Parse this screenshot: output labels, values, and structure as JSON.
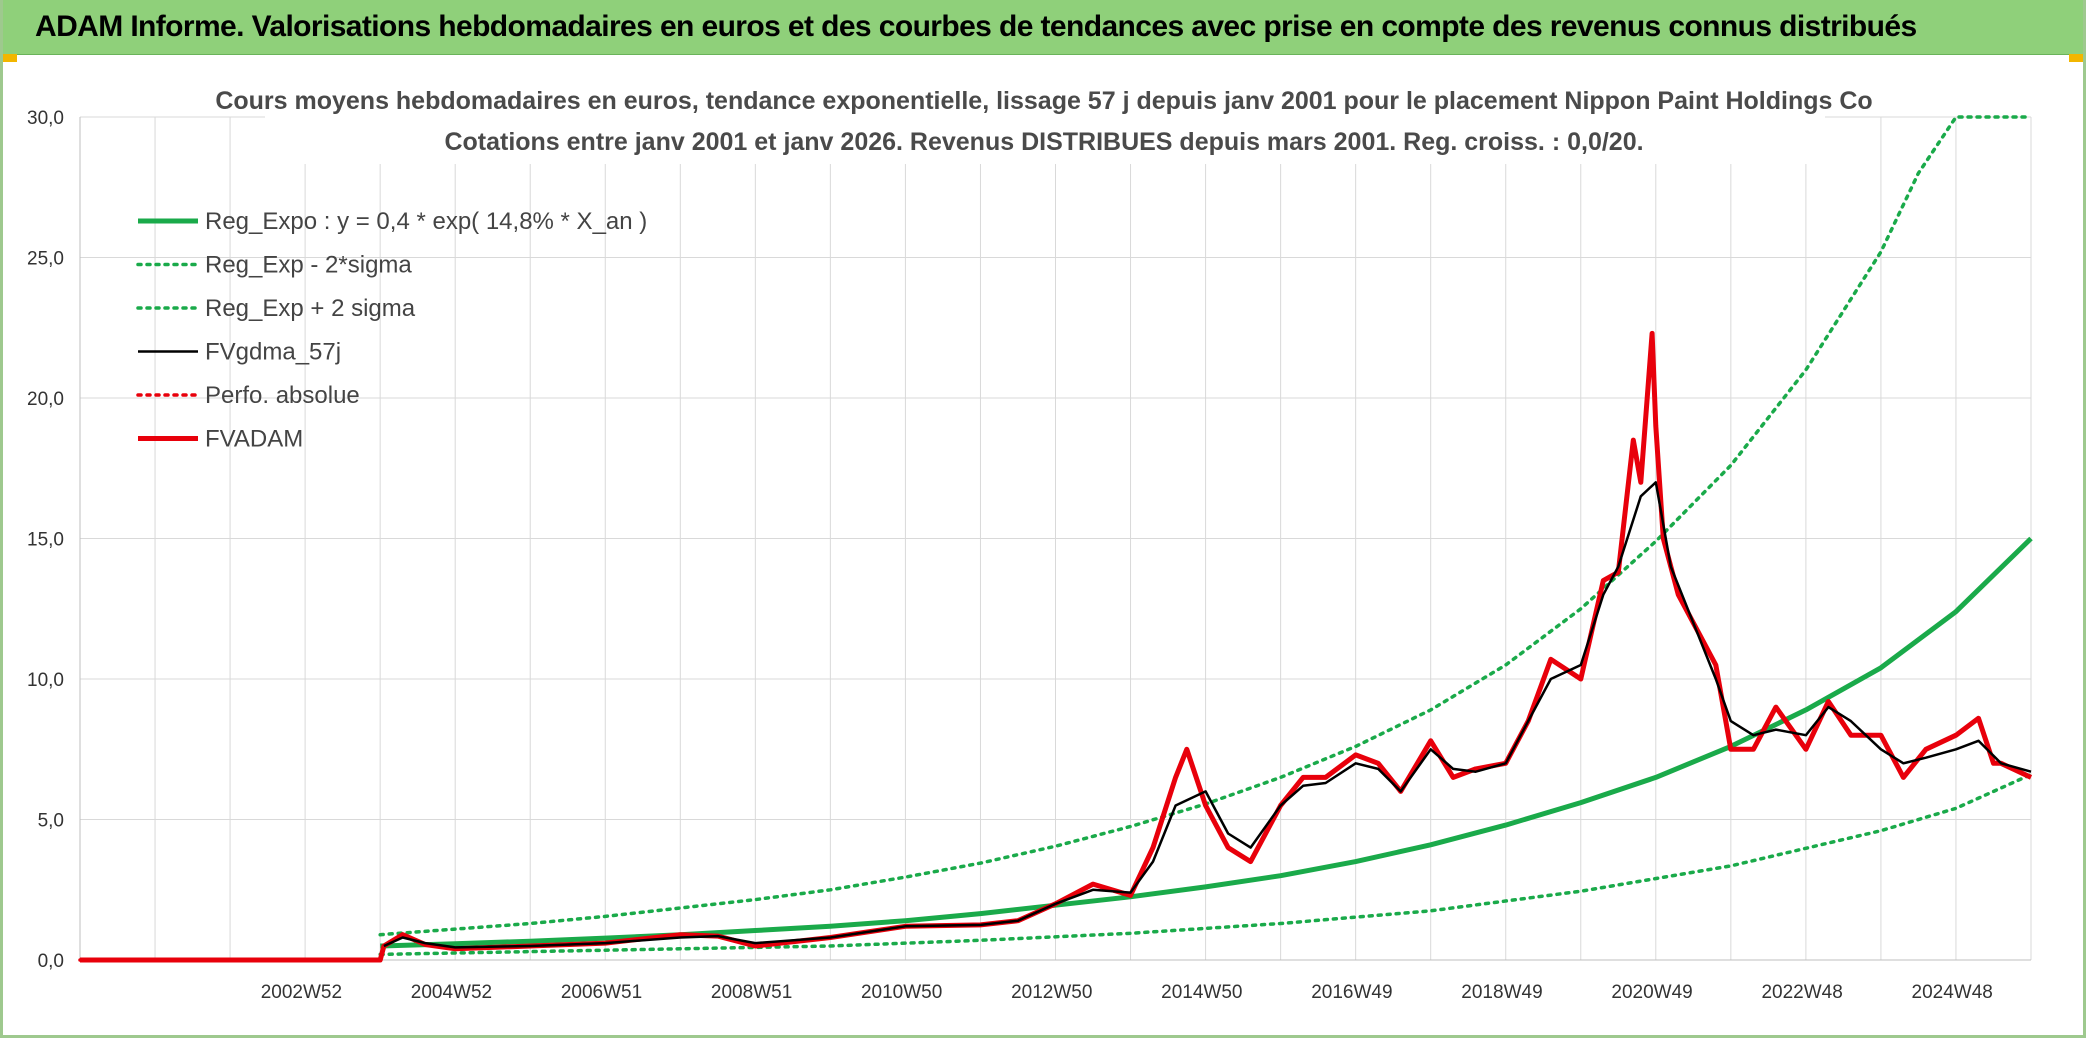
{
  "header": {
    "title": "ADAM Informe. Valorisations hebdomadaires en euros et des courbes de tendances avec prise en compte des revenus connus distribués"
  },
  "colors": {
    "header_bg": "#8fd07a",
    "green": "#1aaa4a",
    "black": "#000000",
    "red": "#e8000b",
    "grid": "#d9d9d9"
  },
  "chart_data": {
    "type": "line",
    "title": "Cours moyens hebdomadaires en euros, tendance exponentielle, lissage 57 j depuis janv 2001 pour le placement Nippon Paint Holdings Co",
    "subtitle": "Cotations entre janv 2001 et janv 2026. Revenus DISTRIBUES depuis mars 2001. Reg. croiss. : 0,0/20.",
    "xlabel": "",
    "ylabel": "",
    "xlim": [
      2000.0,
      2026.0
    ],
    "ylim": [
      0,
      30
    ],
    "yticks": [
      0,
      5,
      10,
      15,
      20,
      25,
      30
    ],
    "ytick_labels": [
      "0,0",
      "5,0",
      "10,0",
      "15,0",
      "20,0",
      "25,0",
      "30,0"
    ],
    "xticks": [
      2002.95,
      2004.95,
      2006.95,
      2008.95,
      2010.95,
      2012.95,
      2014.95,
      2016.95,
      2018.95,
      2020.95,
      2022.95,
      2024.95
    ],
    "xtick_labels": [
      "2002W52",
      "2004W52",
      "2006W51",
      "2008W51",
      "2010W50",
      "2012W50",
      "2014W50",
      "2016W49",
      "2018W49",
      "2020W49",
      "2022W48",
      "2024W48"
    ],
    "grid": true,
    "legend_position": "top-left",
    "legend": [
      "Reg_Expo : y = 0,4 * exp( 14,8% *  X_an )",
      "Reg_Exp - 2*sigma",
      "Reg_Exp + 2 sigma",
      "FVgdma_57j",
      "Perfo. absolue",
      "FVADAM"
    ],
    "series": [
      {
        "name": "Reg_Expo : y = 0,4 * exp( 14,8% *  X_an )",
        "style": "solid-thick",
        "color": "#1aaa4a",
        "x": [
          2004.0,
          2005.0,
          2006.0,
          2007.0,
          2008.0,
          2009.0,
          2010.0,
          2011.0,
          2012.0,
          2013.0,
          2014.0,
          2015.0,
          2016.0,
          2017.0,
          2018.0,
          2019.0,
          2020.0,
          2021.0,
          2022.0,
          2023.0,
          2024.0,
          2025.0,
          2026.0
        ],
        "y": [
          0.5,
          0.58,
          0.67,
          0.78,
          0.9,
          1.05,
          1.2,
          1.4,
          1.65,
          1.95,
          2.25,
          2.6,
          3.0,
          3.5,
          4.1,
          4.8,
          5.6,
          6.5,
          7.6,
          8.9,
          10.4,
          12.4,
          15.0
        ]
      },
      {
        "name": "Reg_Exp - 2*sigma",
        "style": "dotted",
        "color": "#1aaa4a",
        "x": [
          2004.0,
          2006.0,
          2008.0,
          2010.0,
          2012.0,
          2014.0,
          2016.0,
          2018.0,
          2020.0,
          2022.0,
          2024.0,
          2025.0,
          2026.0
        ],
        "y": [
          0.2,
          0.3,
          0.4,
          0.5,
          0.7,
          0.95,
          1.3,
          1.75,
          2.45,
          3.35,
          4.6,
          5.4,
          6.6
        ]
      },
      {
        "name": "Reg_Exp + 2 sigma",
        "style": "dotted",
        "color": "#1aaa4a",
        "x": [
          2004.0,
          2005.0,
          2006.0,
          2007.0,
          2008.0,
          2009.0,
          2010.0,
          2011.0,
          2012.0,
          2013.0,
          2014.0,
          2015.0,
          2016.0,
          2017.0,
          2018.0,
          2019.0,
          2020.0,
          2021.0,
          2022.0,
          2023.0,
          2024.0,
          2024.5,
          2025.0,
          2026.0
        ],
        "y": [
          0.9,
          1.1,
          1.3,
          1.55,
          1.85,
          2.15,
          2.5,
          2.95,
          3.45,
          4.05,
          4.75,
          5.55,
          6.5,
          7.6,
          8.9,
          10.5,
          12.5,
          14.9,
          17.6,
          21.0,
          25.2,
          28.0,
          30.0,
          30.0
        ]
      },
      {
        "name": "FVgdma_57j",
        "style": "solid",
        "color": "#000000",
        "x": [
          2004.05,
          2004.3,
          2004.6,
          2005.0,
          2006.0,
          2007.0,
          2008.0,
          2008.5,
          2009.0,
          2010.0,
          2010.5,
          2011.0,
          2012.0,
          2012.5,
          2013.0,
          2013.5,
          2014.0,
          2014.3,
          2014.6,
          2015.0,
          2015.3,
          2015.6,
          2016.0,
          2016.3,
          2016.6,
          2017.0,
          2017.3,
          2017.6,
          2018.0,
          2018.3,
          2018.6,
          2019.0,
          2019.3,
          2019.6,
          2020.0,
          2020.3,
          2020.5,
          2020.8,
          2021.0,
          2021.2,
          2021.5,
          2021.8,
          2022.0,
          2022.3,
          2022.6,
          2023.0,
          2023.3,
          2023.6,
          2024.0,
          2024.3,
          2024.6,
          2025.0,
          2025.3,
          2025.6,
          2026.0
        ],
        "y": [
          0.5,
          0.8,
          0.6,
          0.45,
          0.5,
          0.6,
          0.8,
          0.85,
          0.6,
          0.8,
          1.0,
          1.2,
          1.25,
          1.4,
          2.0,
          2.5,
          2.4,
          3.5,
          5.5,
          6.0,
          4.5,
          4.0,
          5.5,
          6.2,
          6.3,
          7.0,
          6.8,
          6.0,
          7.5,
          6.8,
          6.7,
          7.0,
          8.5,
          10.0,
          10.5,
          13.0,
          14.0,
          16.5,
          17.0,
          14.0,
          12.0,
          10.0,
          8.5,
          8.0,
          8.2,
          8.0,
          9.0,
          8.5,
          7.5,
          7.0,
          7.2,
          7.5,
          7.8,
          7.0,
          6.7
        ]
      },
      {
        "name": "Perfo. absolue",
        "style": "dotted",
        "color": "#e8000b",
        "x": [
          2000.0,
          2004.0
        ],
        "y": [
          0.0,
          0.0
        ]
      },
      {
        "name": "FVADAM",
        "style": "solid-thick",
        "color": "#e8000b",
        "x": [
          2000.0,
          2004.0,
          2004.05,
          2004.3,
          2004.6,
          2005.0,
          2006.0,
          2007.0,
          2008.0,
          2008.5,
          2009.0,
          2010.0,
          2010.5,
          2011.0,
          2012.0,
          2012.5,
          2013.0,
          2013.5,
          2014.0,
          2014.3,
          2014.6,
          2014.75,
          2015.0,
          2015.3,
          2015.6,
          2016.0,
          2016.3,
          2016.6,
          2017.0,
          2017.3,
          2017.6,
          2018.0,
          2018.3,
          2018.6,
          2019.0,
          2019.3,
          2019.6,
          2020.0,
          2020.3,
          2020.5,
          2020.7,
          2020.8,
          2020.95,
          2021.0,
          2021.1,
          2021.3,
          2021.5,
          2021.8,
          2022.0,
          2022.3,
          2022.6,
          2023.0,
          2023.3,
          2023.6,
          2024.0,
          2024.3,
          2024.6,
          2025.0,
          2025.3,
          2025.5,
          2025.6,
          2026.0
        ],
        "y": [
          0.0,
          0.0,
          0.5,
          0.9,
          0.55,
          0.4,
          0.5,
          0.6,
          0.9,
          0.85,
          0.5,
          0.8,
          1.0,
          1.2,
          1.25,
          1.4,
          2.0,
          2.7,
          2.3,
          4.0,
          6.5,
          7.5,
          5.5,
          4.0,
          3.5,
          5.5,
          6.5,
          6.5,
          7.3,
          7.0,
          6.0,
          7.8,
          6.5,
          6.8,
          7.0,
          8.5,
          10.7,
          10.0,
          13.5,
          13.8,
          18.5,
          17.0,
          22.3,
          19.0,
          15.0,
          13.0,
          12.0,
          10.5,
          7.5,
          7.5,
          9.0,
          7.5,
          9.2,
          8.0,
          8.0,
          6.5,
          7.5,
          8.0,
          8.6,
          7.0,
          7.0,
          6.5
        ]
      }
    ]
  }
}
